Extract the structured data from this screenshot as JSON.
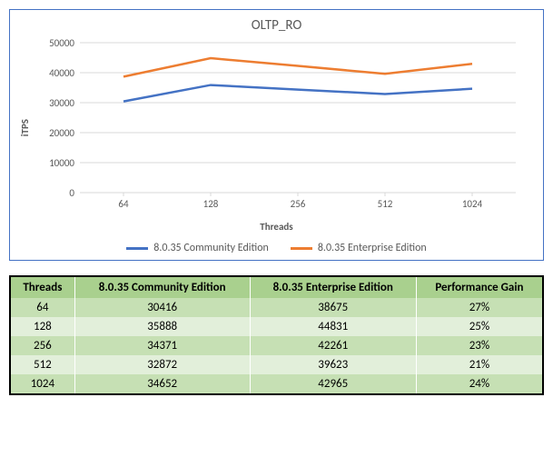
{
  "chart": {
    "type": "line",
    "title": "OLTP_RO",
    "title_fontsize": 15,
    "x_label": "Threads",
    "y_label": "iTPS",
    "label_fontsize": 11,
    "background_color": "#ffffff",
    "border_color": "#4472c4",
    "grid_color": "#d9d9d9",
    "axis_line_color": "#d9d9d9",
    "tick_fontsize": 11,
    "tick_color": "#595959",
    "x_categories": [
      "64",
      "128",
      "256",
      "512",
      "1024"
    ],
    "ylim": [
      0,
      50000
    ],
    "ytick_step": 10000,
    "y_ticks": [
      "0",
      "10000",
      "20000",
      "30000",
      "40000",
      "50000"
    ],
    "line_width": 2.5,
    "series": [
      {
        "name": "8.0.35 Community Edition",
        "color": "#4472c4",
        "values": [
          30416,
          35888,
          34371,
          32872,
          34652
        ]
      },
      {
        "name": "8.0.35 Enterprise Edition",
        "color": "#ed7d31",
        "values": [
          38675,
          44831,
          42261,
          39623,
          42965
        ]
      }
    ],
    "legend_position": "bottom"
  },
  "table": {
    "header_bg": "#a9d08e",
    "row_odd_bg": "#c6e0b4",
    "row_even_bg": "#e2efda",
    "border_color": "#000000",
    "cell_divider_color": "#ffffff",
    "columns": [
      "Threads",
      "8.0.35 Community Edition",
      "8.0.35 Enterprise Edition",
      "Performance Gain"
    ],
    "rows": [
      [
        "64",
        "30416",
        "38675",
        "27%"
      ],
      [
        "128",
        "35888",
        "44831",
        "25%"
      ],
      [
        "256",
        "34371",
        "42261",
        "23%"
      ],
      [
        "512",
        "32872",
        "39623",
        "21%"
      ],
      [
        "1024",
        "34652",
        "42965",
        "24%"
      ]
    ]
  }
}
